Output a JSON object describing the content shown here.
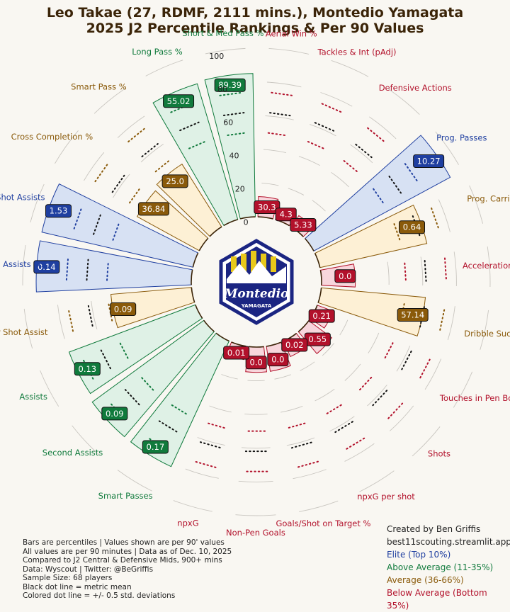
{
  "title": {
    "line1": "Leo Takae (27, RDMF, 2111 mins.), Montedio Yamagata",
    "line2": "2025 J2 Percentile Rankings & Per 90 Values"
  },
  "logo": {
    "text": "Montedio",
    "subtext": "YAMAGATA",
    "colors": {
      "navy": "#1b2582",
      "yellow": "#e8c81a",
      "white": "#ffffff"
    }
  },
  "colors": {
    "elite": "#1f3fa0",
    "above_average": "#107a3c",
    "average": "#8a5a0a",
    "below_average": "#b2112b",
    "elite_fill": "#d7e1f3",
    "above_fill": "#dff1e6",
    "average_fill": "#fdf0d5",
    "below_fill": "#f8d6dc",
    "background": "#f9f7f2"
  },
  "chart_data": {
    "type": "radial-bar",
    "radial_ticks": [
      0,
      20,
      40,
      60,
      80,
      100
    ],
    "series_name": "Percentile",
    "categories": [
      {
        "label": "Aerial Win %",
        "value": "30.3",
        "percentile": 12,
        "tier": "below_average"
      },
      {
        "label": "Tackles & Int (pAdj)",
        "value": "4.3",
        "percentile": 7,
        "tier": "below_average"
      },
      {
        "label": "Defensive Actions",
        "value": "5.33",
        "percentile": 8,
        "tier": "below_average"
      },
      {
        "label": "Prog. Passes",
        "value": "10.27",
        "percentile": 92,
        "tier": "elite"
      },
      {
        "label": "Prog. Carries",
        "value": "0.64",
        "percentile": 65,
        "tier": "average"
      },
      {
        "label": "Acceleration with Ball",
        "value": "0.0",
        "percentile": 20,
        "tier": "below_average"
      },
      {
        "label": "Dribble Success %",
        "value": "57.14",
        "percentile": 62,
        "tier": "average"
      },
      {
        "label": "Touches in Pen Box",
        "value": "0.21",
        "percentile": 10,
        "tier": "below_average"
      },
      {
        "label": "Shots",
        "value": "0.55",
        "percentile": 17,
        "tier": "below_average"
      },
      {
        "label": "npxG per shot",
        "value": "0.02",
        "percentile": 10,
        "tier": "below_average"
      },
      {
        "label": "Goals/Shot on Target %",
        "value": "0.0",
        "percentile": 15,
        "tier": "below_average"
      },
      {
        "label": "Non-Pen Goals",
        "value": "0.0",
        "percentile": 15,
        "tier": "below_average"
      },
      {
        "label": "npxG",
        "value": "0.01",
        "percentile": 8,
        "tier": "below_average"
      },
      {
        "label": "Smart Passes",
        "value": "0.17",
        "percentile": 82,
        "tier": "above_average"
      },
      {
        "label": "Second Assists",
        "value": "0.09",
        "percentile": 82,
        "tier": "above_average"
      },
      {
        "label": "Assists",
        "value": "0.13",
        "percentile": 80,
        "tier": "above_average"
      },
      {
        "label": "xA per Shot Assist",
        "value": "0.09",
        "percentile": 48,
        "tier": "average"
      },
      {
        "label": "Expected Assists (xA)",
        "value": "0.14",
        "percentile": 92,
        "tier": "elite"
      },
      {
        "label": "Shot Assists",
        "value": "1.53",
        "percentile": 92,
        "tier": "elite"
      },
      {
        "label": "Cross Completion %",
        "value": "36.84",
        "percentile": 42,
        "tier": "average"
      },
      {
        "label": "Smart Pass %",
        "value": "25.0",
        "percentile": 44,
        "tier": "average"
      },
      {
        "label": "Long Pass %",
        "value": "55.02",
        "percentile": 84,
        "tier": "above_average"
      },
      {
        "label": "Short & Med Pass %",
        "value": "89.39",
        "percentile": 85,
        "tier": "above_average"
      }
    ]
  },
  "footnotes": [
    "Bars are percentiles | Values shown are per 90' values",
    "All values are per 90 minutes | Data as of Dec. 10, 2025",
    "Compared to J2 Central & Defensive Mids, 900+ mins",
    "Data: Wyscout | Twitter: @BeGriffis",
    "Sample Size: 68 players",
    "Black dot line = metric mean",
    "Colored dot line = +/- 0.5 std. deviations"
  ],
  "credits": {
    "line1": "Created by Ben Griffis",
    "line2": "best11scouting.streamlit.app"
  },
  "legend": [
    {
      "label": "Elite (Top 10%)",
      "tier": "elite"
    },
    {
      "label": "Above Average (11-35%)",
      "tier": "above_average"
    },
    {
      "label": "Average (36-66%)",
      "tier": "average"
    },
    {
      "label": "Below Average (Bottom 35%)",
      "tier": "below_average"
    }
  ]
}
